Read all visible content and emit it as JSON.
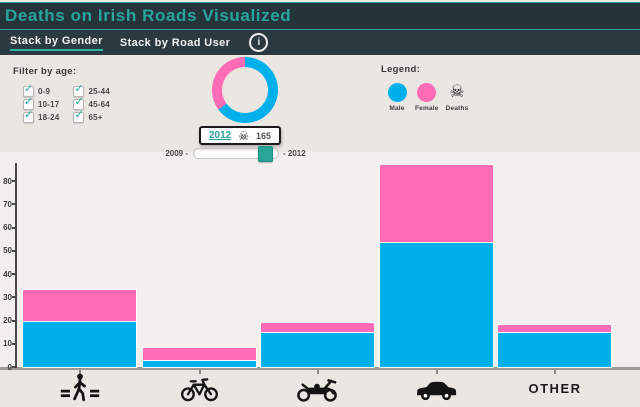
{
  "header": {
    "title": "Deaths on Irish Roads Visualized"
  },
  "nav": {
    "tabs": [
      {
        "label": "Stack by Gender",
        "active": true
      },
      {
        "label": "Stack by Road User",
        "active": false
      }
    ],
    "info_label": "i"
  },
  "filters": {
    "title": "Filter by age:",
    "options": [
      {
        "label": "0-9",
        "checked": true
      },
      {
        "label": "10-17",
        "checked": true
      },
      {
        "label": "18-24",
        "checked": true
      },
      {
        "label": "25-44",
        "checked": true
      },
      {
        "label": "45-64",
        "checked": true
      },
      {
        "label": "65+",
        "checked": true
      }
    ]
  },
  "year_badge": {
    "year": "2012",
    "deaths": "165"
  },
  "slider": {
    "left_label": "2009 -",
    "right_label": "- 2012",
    "min": 2009,
    "max": 2012,
    "value": 2012
  },
  "legend": {
    "title": "Legend:",
    "items": [
      {
        "label": "Male",
        "type": "circle",
        "color": "#00b0ea"
      },
      {
        "label": "Female",
        "type": "circle",
        "color": "#fd6cb5"
      },
      {
        "label": "Deaths",
        "type": "skull"
      }
    ]
  },
  "icons": {
    "skull": "☠",
    "check": "✓",
    "info": "i"
  },
  "colors": {
    "male_blue": "#00b0ea",
    "female_pink": "#fd6cb5",
    "accent_teal": "#26a69a",
    "header_bg": "#25343a",
    "page_bg": "#eae7e3",
    "chart_bg": "#f2f0ee"
  },
  "chart_data": {
    "type": "bar",
    "stacked": true,
    "title": "Deaths on Irish Roads Visualized",
    "categories": [
      "Pedestrian",
      "Bicycle",
      "Motorcycle",
      "Car",
      "Other"
    ],
    "series": [
      {
        "name": "Male",
        "color": "#00b0ea",
        "values": [
          20,
          3,
          15,
          54,
          15
        ]
      },
      {
        "name": "Female",
        "color": "#fd6cb5",
        "values": [
          13,
          5,
          4,
          33,
          3
        ]
      }
    ],
    "totals": [
      33,
      8,
      19,
      87,
      18
    ],
    "yticks": [
      0,
      10,
      20,
      30,
      40,
      50,
      60,
      70,
      80
    ],
    "ylim": [
      0,
      87
    ],
    "grid": false,
    "legend_position": "top-right",
    "x_axis_other_label": "OTHER",
    "year": 2012,
    "total_deaths": 165,
    "donut": {
      "type": "donut",
      "male": 107,
      "female": 58,
      "total": 165
    }
  }
}
